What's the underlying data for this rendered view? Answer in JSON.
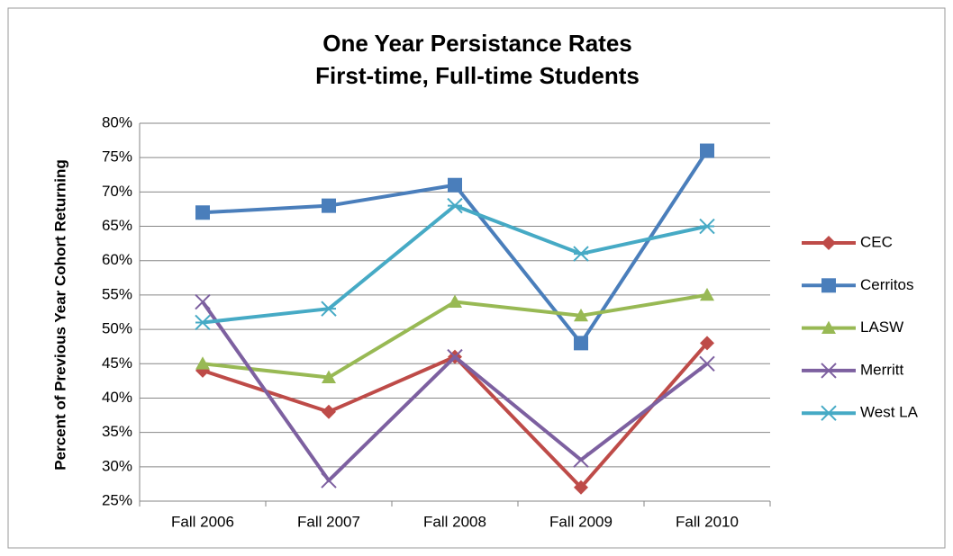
{
  "chart_data": {
    "type": "line",
    "title": "One Year Persistance Rates",
    "subtitle": "First-time, Full-time Students",
    "y_label": "Percent of Previous Year Cohort Returning",
    "categories": [
      "Fall 2006",
      "Fall 2007",
      "Fall 2008",
      "Fall 2009",
      "Fall 2010"
    ],
    "series": [
      {
        "name": "CEC",
        "color": "#be4b48",
        "marker": "diamond",
        "values": [
          44,
          38,
          46,
          27,
          48
        ]
      },
      {
        "name": "Cerritos",
        "color": "#4a7ebb",
        "marker": "square",
        "values": [
          67,
          68,
          71,
          48,
          76
        ]
      },
      {
        "name": "LASW",
        "color": "#98b954",
        "marker": "triangle",
        "values": [
          45,
          43,
          54,
          52,
          55
        ]
      },
      {
        "name": "Merritt",
        "color": "#7d60a0",
        "marker": "x",
        "values": [
          54,
          28,
          46,
          31,
          45
        ]
      },
      {
        "name": "West LA",
        "color": "#46aac5",
        "marker": "star",
        "values": [
          51,
          53,
          68,
          61,
          65
        ]
      }
    ],
    "ylim": [
      25,
      80
    ],
    "yticks": [
      {
        "value": 25,
        "label": "25%"
      },
      {
        "value": 30,
        "label": "30%"
      },
      {
        "value": 35,
        "label": "35%"
      },
      {
        "value": 40,
        "label": "40%"
      },
      {
        "value": 45,
        "label": "45%"
      },
      {
        "value": 50,
        "label": "50%"
      },
      {
        "value": 55,
        "label": "55%"
      },
      {
        "value": 60,
        "label": "60%"
      },
      {
        "value": 65,
        "label": "65%"
      },
      {
        "value": 70,
        "label": "70%"
      },
      {
        "value": 75,
        "label": "75%"
      },
      {
        "value": 80,
        "label": "80%"
      }
    ],
    "grid": true,
    "legend": "right"
  }
}
